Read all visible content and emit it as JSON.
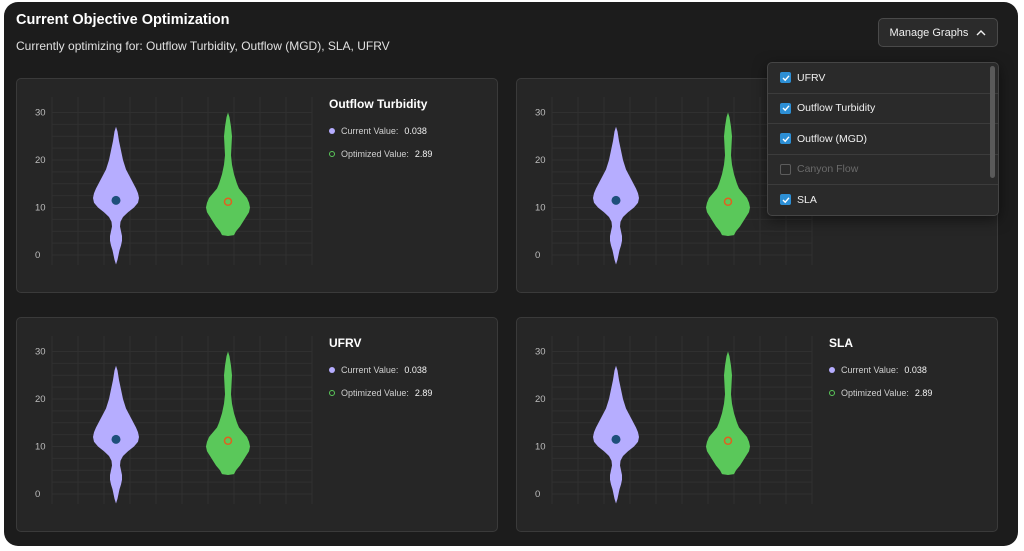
{
  "header": {
    "title": "Current Objective Optimization",
    "subtitle": "Currently optimizing for: Outflow Turbidity, Outflow (MGD), SLA, UFRV"
  },
  "manage_graphs": {
    "label": "Manage Graphs",
    "icon": "chevron-up-icon"
  },
  "dropdown": {
    "items": [
      {
        "label": "UFRV",
        "checked": true,
        "enabled": true
      },
      {
        "label": "Outflow Turbidity",
        "checked": true,
        "enabled": true
      },
      {
        "label": "Outflow (MGD)",
        "checked": true,
        "enabled": true
      },
      {
        "label": "Canyon Flow",
        "checked": false,
        "enabled": false
      },
      {
        "label": "SLA",
        "checked": true,
        "enabled": true
      }
    ]
  },
  "legend": {
    "current_label": "Current Value:",
    "optimized_label": "Optimized Value:"
  },
  "colors": {
    "current": "#b6adff",
    "optimized": "#5ac85a",
    "current_marker": "#1e4f7a",
    "optimized_marker": "#e06020"
  },
  "charts": [
    {
      "title": "Outflow Turbidity",
      "current_value": "0.038",
      "optimized_value": "2.89"
    },
    {
      "title": "",
      "current_value": "",
      "optimized_value": ""
    },
    {
      "title": "UFRV",
      "current_value": "0.038",
      "optimized_value": "2.89"
    },
    {
      "title": "SLA",
      "current_value": "0.038",
      "optimized_value": "2.89"
    }
  ],
  "chart_data": [
    {
      "type": "violin",
      "title": "Outflow Turbidity",
      "yticks": [
        "30",
        "20",
        "10",
        "0"
      ],
      "ylim": [
        -2,
        32
      ],
      "series": [
        {
          "name": "Current Value",
          "median": 11.5,
          "range": [
            -2,
            27
          ]
        },
        {
          "name": "Optimized Value",
          "median": 11.2,
          "range": [
            4,
            30
          ]
        }
      ],
      "grid": true
    },
    {
      "type": "violin",
      "yticks": [
        "30",
        "20",
        "10",
        "0"
      ],
      "ylim": [
        -2,
        32
      ],
      "series": [
        {
          "median": 11.5,
          "range": [
            -2,
            27
          ]
        },
        {
          "median": 11.2,
          "range": [
            4,
            30
          ]
        }
      ],
      "grid": true
    },
    {
      "type": "violin",
      "title": "UFRV",
      "yticks": [
        "30",
        "20",
        "10",
        "0"
      ],
      "ylim": [
        -2,
        32
      ],
      "series": [
        {
          "name": "Current Value",
          "median": 11.5,
          "range": [
            -2,
            27
          ]
        },
        {
          "name": "Optimized Value",
          "median": 11.2,
          "range": [
            4,
            30
          ]
        }
      ],
      "grid": true
    },
    {
      "type": "violin",
      "title": "SLA",
      "yticks": [
        "30",
        "20",
        "10",
        "0"
      ],
      "ylim": [
        -2,
        32
      ],
      "series": [
        {
          "name": "Current Value",
          "median": 11.5,
          "range": [
            -2,
            27
          ]
        },
        {
          "name": "Optimized Value",
          "median": 11.2,
          "range": [
            4,
            30
          ]
        }
      ],
      "grid": true
    }
  ]
}
